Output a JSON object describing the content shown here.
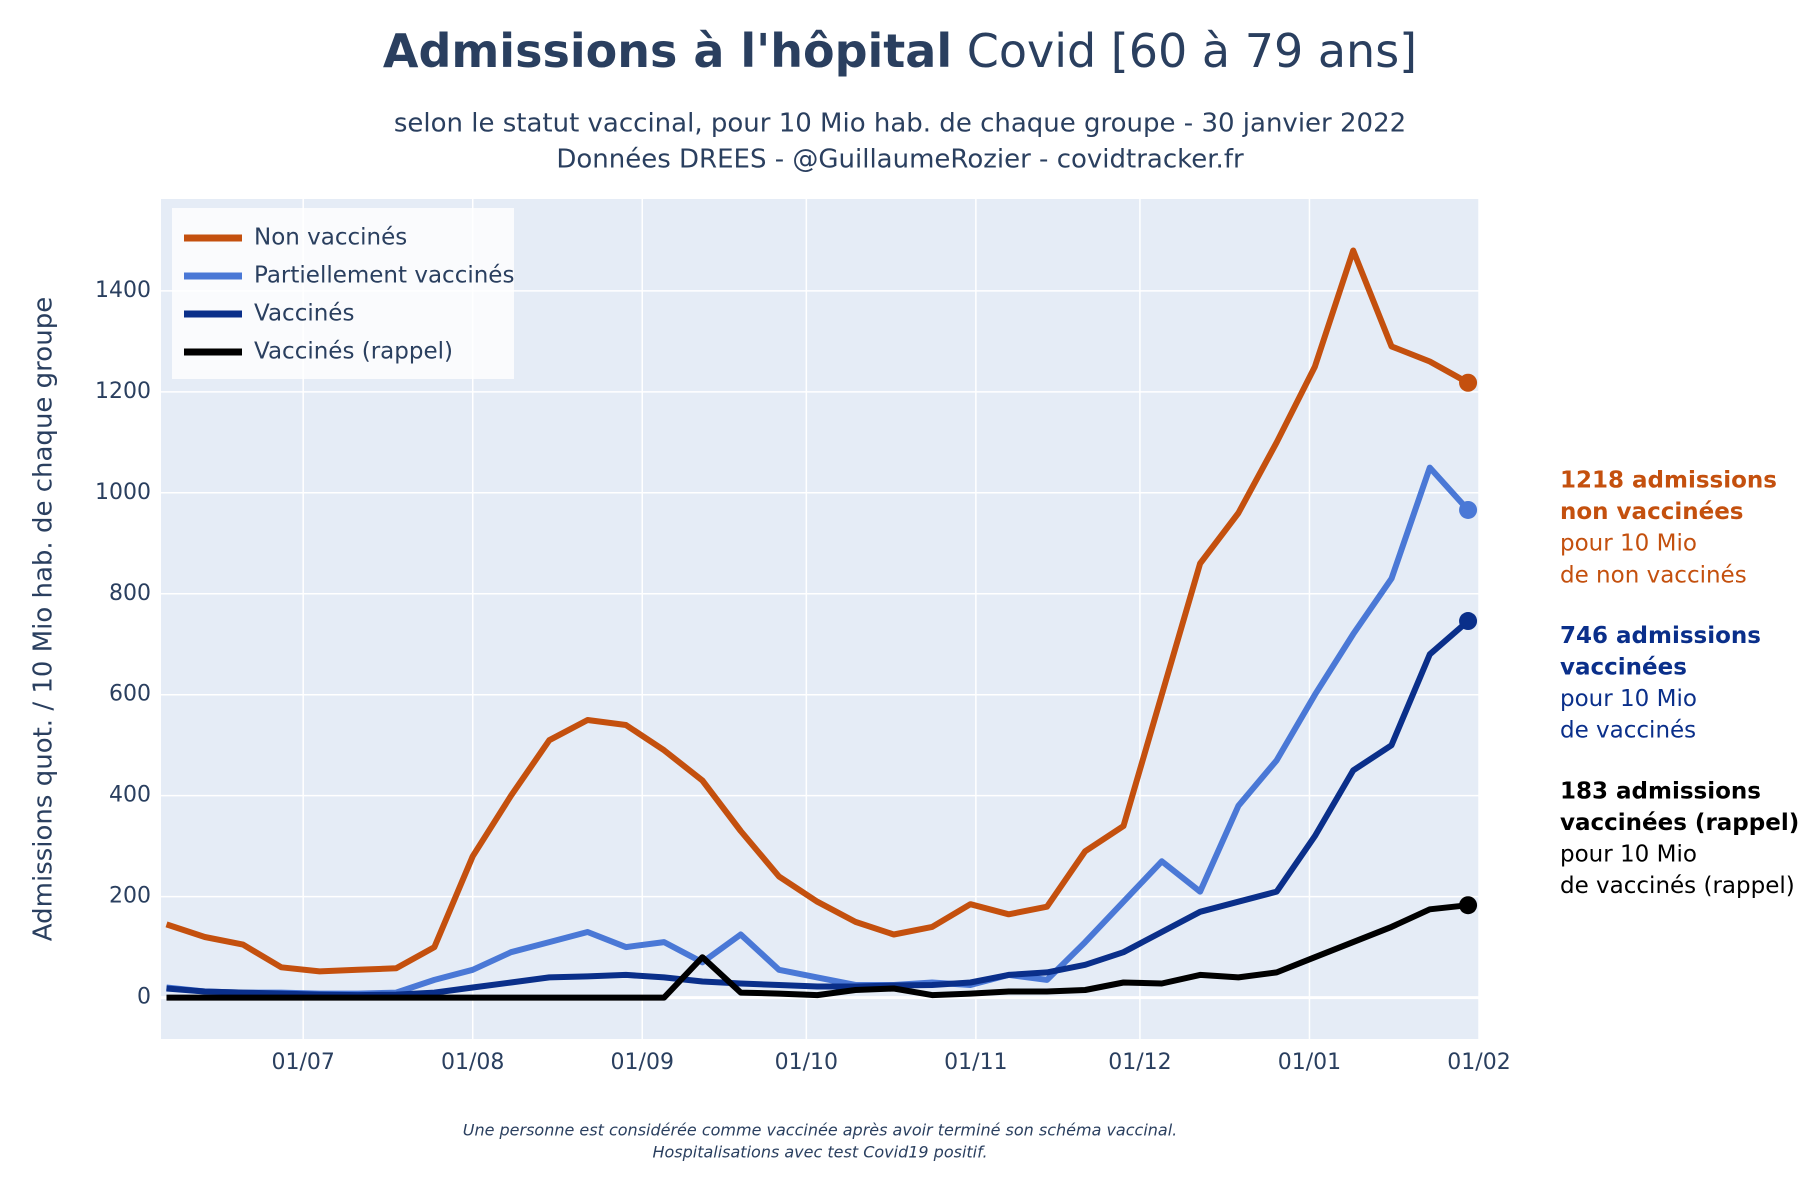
{
  "chart_data": {
    "type": "line",
    "title": {
      "bold": "Admissions à l'hôpital",
      "rest": "Covid [60 à 79 ans]"
    },
    "subtitle": [
      "selon le statut vaccinal, pour 10 Mio hab. de chaque groupe - 30 janvier 2022",
      "Données DREES - @GuillaumeRozier - covidtracker.fr"
    ],
    "y_label": "Admissions quot. / 10 Mio hab. de chaque groupe",
    "footnote": [
      "Une personne est considérée comme vaccinée après avoir terminé son schéma vaccinal.",
      "Hospitalisations avec test Covid19 positif."
    ],
    "x": [
      "06/06",
      "13/06",
      "20/06",
      "27/06",
      "04/07",
      "11/07",
      "18/07",
      "25/07",
      "01/08",
      "08/08",
      "15/08",
      "22/08",
      "29/08",
      "05/09",
      "12/09",
      "19/09",
      "26/09",
      "03/10",
      "10/10",
      "17/10",
      "24/10",
      "31/10",
      "07/11",
      "14/11",
      "21/11",
      "28/11",
      "05/12",
      "12/12",
      "19/12",
      "26/12",
      "02/01",
      "09/01",
      "16/01",
      "23/01",
      "30/01"
    ],
    "series": [
      {
        "name": "Non vaccinés",
        "color": "#c4500e",
        "values": [
          145,
          120,
          105,
          60,
          52,
          55,
          58,
          100,
          280,
          400,
          510,
          550,
          540,
          490,
          430,
          330,
          240,
          190,
          150,
          125,
          140,
          185,
          165,
          180,
          290,
          340,
          600,
          860,
          960,
          1100,
          1250,
          1480,
          1290,
          1260,
          1218
        ]
      },
      {
        "name": "Partiellement vaccinés",
        "color": "#4a78d6",
        "values": [
          20,
          12,
          10,
          10,
          8,
          8,
          10,
          35,
          55,
          90,
          110,
          130,
          100,
          110,
          70,
          125,
          55,
          40,
          25,
          25,
          30,
          25,
          45,
          35,
          110,
          190,
          270,
          210,
          380,
          470,
          600,
          720,
          830,
          1050,
          966
        ]
      },
      {
        "name": "Vaccinés",
        "color": "#0a2f8a",
        "values": [
          18,
          12,
          10,
          8,
          6,
          5,
          6,
          10,
          20,
          30,
          40,
          42,
          45,
          40,
          32,
          28,
          25,
          22,
          22,
          24,
          25,
          30,
          45,
          50,
          65,
          90,
          130,
          170,
          190,
          210,
          320,
          450,
          500,
          680,
          746
        ]
      },
      {
        "name": "Vaccinés (rappel)",
        "color": "#000000",
        "values": [
          0,
          0,
          0,
          0,
          0,
          0,
          0,
          0,
          0,
          0,
          0,
          0,
          0,
          0,
          80,
          10,
          8,
          5,
          15,
          18,
          5,
          8,
          12,
          12,
          15,
          30,
          28,
          45,
          40,
          50,
          80,
          110,
          140,
          175,
          183
        ]
      }
    ],
    "xlim": [
      "05/06",
      "01/02"
    ],
    "xticks": [
      "01/07",
      "01/08",
      "01/09",
      "01/10",
      "01/11",
      "01/12",
      "01/01",
      "01/02"
    ],
    "ylim": [
      -82,
      1582
    ],
    "yticks": [
      0,
      200,
      400,
      600,
      800,
      1000,
      1200,
      1400
    ],
    "grid": true,
    "legend": "top-left",
    "annotations": [
      {
        "emphasis": [
          "1218 admissions",
          "non vaccinées"
        ],
        "text": [
          "pour 10 Mio",
          "de non vaccinés"
        ],
        "color": "#c4500e"
      },
      {
        "emphasis": [
          "746 admissions",
          "vaccinées"
        ],
        "text": [
          "pour 10 Mio",
          "de vaccinés"
        ],
        "color": "#0a2f8a"
      },
      {
        "emphasis": [
          "183 admissions",
          "vaccinées (rappel)"
        ],
        "text": [
          "pour 10 Mio",
          "de vaccinés (rappel)"
        ],
        "color": "#000000"
      }
    ]
  }
}
